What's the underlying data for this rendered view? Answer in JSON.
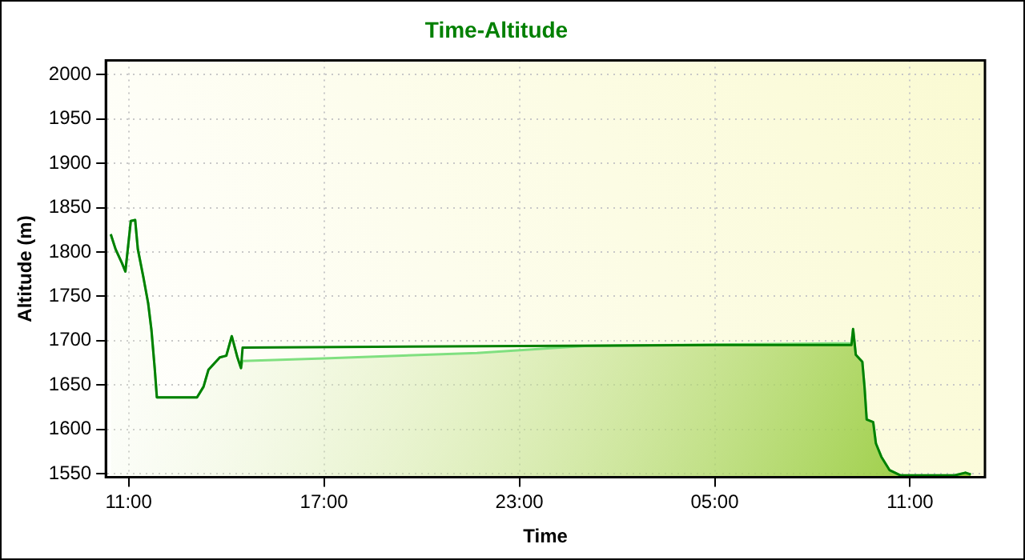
{
  "chart_data": {
    "type": "line",
    "title": "Time-Altitude",
    "xlabel": "Time",
    "ylabel": "Altitude (m)",
    "xlim": [
      "--01-01T10:18",
      "--01-02T13:18"
    ],
    "xticks": [
      {
        "value": "--01-01T11:00",
        "label": "11:00"
      },
      {
        "value": "--01-01T17:00",
        "label": "17:00"
      },
      {
        "value": "--01-01T23:00",
        "label": "23:00"
      },
      {
        "value": "--01-02T05:00",
        "label": "05:00"
      },
      {
        "value": "--01-02T11:00",
        "label": "11:00"
      }
    ],
    "ylim": [
      1546,
      2016
    ],
    "yticks": [
      1550,
      1600,
      1650,
      1700,
      1750,
      1800,
      1850,
      1900,
      1950,
      2000
    ],
    "grid": true,
    "legend": false,
    "marker": "none",
    "line_style": "solid",
    "series": [
      {
        "type": "area",
        "color": "#80e080",
        "x": [
          "--01-01T10:27",
          "--01-01T10:36",
          "--01-01T10:48",
          "--01-01T10:54",
          "--01-01T11:04",
          "--01-01T11:12",
          "--01-01T11:17",
          "--01-01T11:27",
          "--01-01T11:36",
          "--01-01T11:42",
          "--01-01T11:48",
          "--01-01T11:52",
          "--01-01T13:06",
          "--01-01T13:18",
          "--01-01T13:27",
          "--01-01T13:48",
          "--01-01T14:00",
          "--01-01T14:10",
          "--01-01T14:20",
          "--01-01T14:27",
          "--01-01T14:30",
          "--01-01T17:00",
          "--01-01T21:42",
          "--01-02T01:00",
          "--01-02T09:12",
          "--01-02T09:15",
          "--01-02T09:20",
          "--01-02T09:32",
          "--01-02T09:36",
          "--01-02T09:40",
          "--01-02T09:52",
          "--01-02T09:57",
          "--01-02T10:07",
          "--01-02T10:22",
          "--01-02T10:42",
          "--01-02T12:22",
          "--01-02T12:42",
          "--01-02T12:52"
        ],
        "values": [
          1820,
          1803,
          1787,
          1778,
          1835,
          1836,
          1803,
          1772,
          1742,
          1712,
          1669,
          1636,
          1636,
          1648,
          1667,
          1681,
          1683,
          1705,
          1682,
          1669,
          1677,
          1680,
          1686,
          1694,
          1697,
          1713,
          1684,
          1676,
          1648,
          1611,
          1608,
          1584,
          1569,
          1554,
          1548,
          1548,
          1551,
          1549
        ]
      },
      {
        "type": "line",
        "color": "#008000",
        "x": [
          "--01-01T10:27",
          "--01-01T10:36",
          "--01-01T10:48",
          "--01-01T10:54",
          "--01-01T11:04",
          "--01-01T11:12",
          "--01-01T11:17",
          "--01-01T11:27",
          "--01-01T11:36",
          "--01-01T11:42",
          "--01-01T11:48",
          "--01-01T11:52",
          "--01-01T13:06",
          "--01-01T13:18",
          "--01-01T13:27",
          "--01-01T13:48",
          "--01-01T14:00",
          "--01-01T14:10",
          "--01-01T14:20",
          "--01-01T14:27",
          "--01-01T14:30",
          "--01-01T23:00",
          "--01-02T05:00",
          "--01-02T09:12",
          "--01-02T09:15",
          "--01-02T09:20",
          "--01-02T09:32",
          "--01-02T09:36",
          "--01-02T09:40",
          "--01-02T09:52",
          "--01-02T09:57",
          "--01-02T10:07",
          "--01-02T10:22",
          "--01-02T10:42",
          "--01-02T12:22",
          "--01-02T12:42",
          "--01-02T12:52"
        ],
        "values": [
          1820,
          1803,
          1787,
          1778,
          1835,
          1836,
          1803,
          1772,
          1742,
          1712,
          1669,
          1636,
          1636,
          1648,
          1667,
          1681,
          1683,
          1705,
          1682,
          1669,
          1692,
          1694,
          1695,
          1695,
          1713,
          1684,
          1676,
          1648,
          1611,
          1608,
          1584,
          1569,
          1554,
          1548,
          1548,
          1551,
          1549
        ]
      }
    ]
  }
}
